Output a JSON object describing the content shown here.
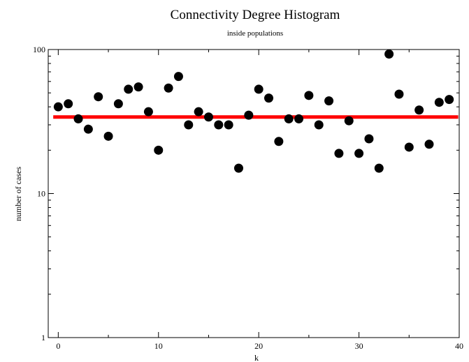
{
  "chart_data": {
    "type": "scatter",
    "title": "Connectivity Degree Histogram",
    "subtitle": "inside populations",
    "xlabel": "k",
    "ylabel": "number of cases",
    "xlim": [
      -1,
      40
    ],
    "ylim": [
      1,
      100
    ],
    "yscale": "log",
    "grid": false,
    "legend": "none",
    "x_ticks": [
      0,
      10,
      20,
      30,
      40
    ],
    "x_tick_labels": [
      "0",
      "10",
      "20",
      "30",
      "40"
    ],
    "y_ticks": [
      1,
      10,
      100
    ],
    "y_tick_labels": [
      "1",
      "10",
      "100"
    ],
    "series": [
      {
        "kind": "points",
        "color": "#000000",
        "x": [
          0,
          1,
          2,
          3,
          4,
          5,
          6,
          7,
          8,
          9,
          10,
          11,
          12,
          13,
          14,
          15,
          16,
          17,
          18,
          19,
          20,
          21,
          22,
          23,
          24,
          25,
          26,
          27,
          28,
          29,
          30,
          31,
          32,
          33,
          34,
          35,
          36,
          37,
          38,
          39
        ],
        "y": [
          40,
          42,
          33,
          28,
          47,
          25,
          42,
          53,
          55,
          37,
          20,
          54,
          65,
          30,
          37,
          34,
          30,
          30,
          15,
          35,
          53,
          46,
          23,
          33,
          33,
          48,
          30,
          44,
          19,
          32,
          19,
          24,
          15,
          93,
          49,
          21,
          38,
          22,
          43,
          45
        ]
      },
      {
        "kind": "line",
        "color": "#ff0000",
        "x": [
          -0.5,
          39.9
        ],
        "y": [
          34,
          34
        ]
      }
    ]
  }
}
